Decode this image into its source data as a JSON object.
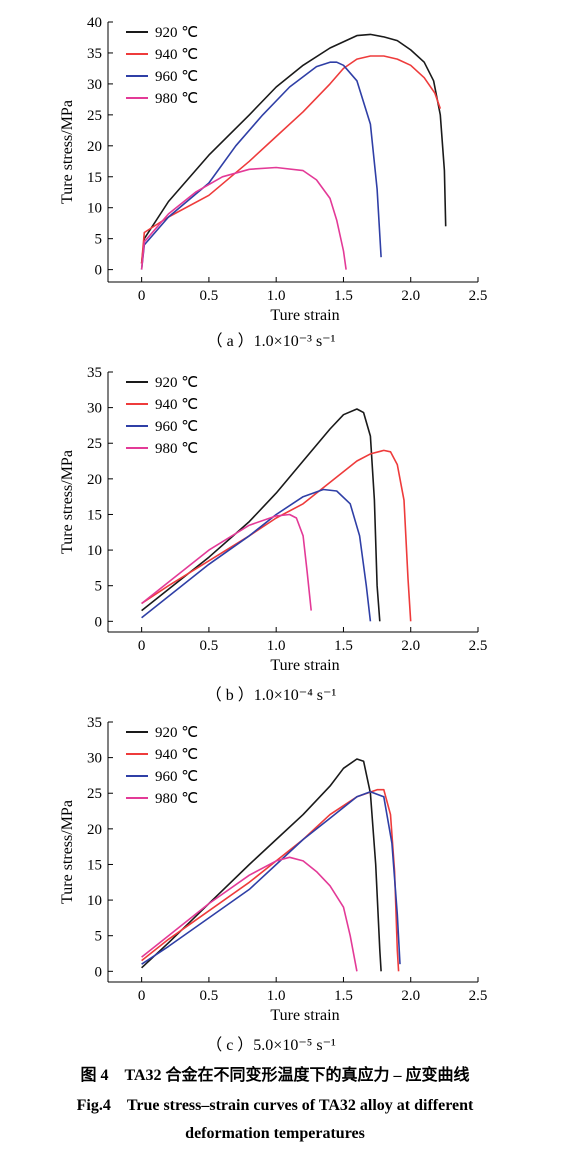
{
  "colors": {
    "920": "#1a1a1a",
    "940": "#ee3b3b",
    "960": "#2f3fa6",
    "980": "#e33a97"
  },
  "chart_data": [
    {
      "type": "line",
      "caption": "（ a ）1.0×10⁻³ s⁻¹",
      "xlabel": "Ture strain",
      "ylabel": "Ture stress/MPa",
      "xlim": [
        -0.25,
        2.5
      ],
      "ylim": [
        -2,
        40
      ],
      "xticks": [
        "0",
        "0.5",
        "1.0",
        "1.5",
        "2.0",
        "2.5"
      ],
      "yticks": [
        "0",
        "5",
        "10",
        "15",
        "20",
        "25",
        "30",
        "35",
        "40"
      ],
      "legend_position": "top-left",
      "series": [
        {
          "name": "920 ℃",
          "color": "#1a1a1a",
          "points": [
            [
              0,
              1
            ],
            [
              0.02,
              5
            ],
            [
              0.2,
              11
            ],
            [
              0.5,
              18.5
            ],
            [
              0.8,
              25
            ],
            [
              1.0,
              29.5
            ],
            [
              1.2,
              33
            ],
            [
              1.4,
              35.8
            ],
            [
              1.6,
              37.8
            ],
            [
              1.7,
              38
            ],
            [
              1.8,
              37.6
            ],
            [
              1.9,
              37
            ],
            [
              2.0,
              35.5
            ],
            [
              2.1,
              33.5
            ],
            [
              2.17,
              30.5
            ],
            [
              2.22,
              25
            ],
            [
              2.25,
              16
            ],
            [
              2.26,
              7
            ]
          ]
        },
        {
          "name": "940 ℃",
          "color": "#ee3b3b",
          "points": [
            [
              0,
              1
            ],
            [
              0.02,
              6
            ],
            [
              0.2,
              8.5
            ],
            [
              0.5,
              12
            ],
            [
              0.8,
              17.5
            ],
            [
              1.0,
              21.5
            ],
            [
              1.2,
              25.5
            ],
            [
              1.4,
              30
            ],
            [
              1.5,
              32.5
            ],
            [
              1.6,
              34
            ],
            [
              1.7,
              34.5
            ],
            [
              1.8,
              34.5
            ],
            [
              1.9,
              34
            ],
            [
              2.0,
              33
            ],
            [
              2.1,
              31
            ],
            [
              2.18,
              28.5
            ],
            [
              2.22,
              26
            ]
          ]
        },
        {
          "name": "960 ℃",
          "color": "#2f3fa6",
          "points": [
            [
              0,
              0
            ],
            [
              0.02,
              4
            ],
            [
              0.2,
              8.5
            ],
            [
              0.5,
              14
            ],
            [
              0.7,
              20
            ],
            [
              0.9,
              25
            ],
            [
              1.1,
              29.5
            ],
            [
              1.3,
              32.8
            ],
            [
              1.4,
              33.5
            ],
            [
              1.45,
              33.5
            ],
            [
              1.5,
              33
            ],
            [
              1.6,
              30.5
            ],
            [
              1.7,
              23.5
            ],
            [
              1.75,
              13
            ],
            [
              1.78,
              2
            ]
          ]
        },
        {
          "name": "980 ℃",
          "color": "#e33a97",
          "points": [
            [
              0,
              0
            ],
            [
              0.02,
              4.5
            ],
            [
              0.2,
              9
            ],
            [
              0.4,
              12.5
            ],
            [
              0.6,
              15
            ],
            [
              0.8,
              16.2
            ],
            [
              1.0,
              16.5
            ],
            [
              1.2,
              16
            ],
            [
              1.3,
              14.5
            ],
            [
              1.4,
              11.5
            ],
            [
              1.45,
              8
            ],
            [
              1.5,
              3
            ],
            [
              1.52,
              0
            ]
          ]
        }
      ]
    },
    {
      "type": "line",
      "caption": "（ b ）1.0×10⁻⁴ s⁻¹",
      "xlabel": "Ture strain",
      "ylabel": "Ture stress/MPa",
      "xlim": [
        -0.25,
        2.5
      ],
      "ylim": [
        -1.5,
        35
      ],
      "xticks": [
        "0",
        "0.5",
        "1.0",
        "1.5",
        "2.0",
        "2.5"
      ],
      "yticks": [
        "0",
        "5",
        "10",
        "15",
        "20",
        "25",
        "30",
        "35"
      ],
      "legend_position": "top-left",
      "series": [
        {
          "name": "920 ℃",
          "color": "#1a1a1a",
          "points": [
            [
              0,
              1.5
            ],
            [
              0.2,
              4.5
            ],
            [
              0.5,
              9
            ],
            [
              0.8,
              14
            ],
            [
              1.0,
              18
            ],
            [
              1.2,
              22.5
            ],
            [
              1.4,
              27
            ],
            [
              1.5,
              29
            ],
            [
              1.6,
              29.8
            ],
            [
              1.65,
              29.3
            ],
            [
              1.7,
              26
            ],
            [
              1.73,
              17
            ],
            [
              1.75,
              5
            ],
            [
              1.77,
              0
            ]
          ]
        },
        {
          "name": "940 ℃",
          "color": "#ee3b3b",
          "points": [
            [
              0,
              2.5
            ],
            [
              0.2,
              5
            ],
            [
              0.5,
              8.5
            ],
            [
              0.8,
              12
            ],
            [
              1.0,
              14.5
            ],
            [
              1.2,
              16.5
            ],
            [
              1.4,
              19.5
            ],
            [
              1.6,
              22.5
            ],
            [
              1.7,
              23.5
            ],
            [
              1.8,
              24
            ],
            [
              1.85,
              23.8
            ],
            [
              1.9,
              22
            ],
            [
              1.95,
              17
            ],
            [
              1.98,
              6
            ],
            [
              2.0,
              0
            ]
          ]
        },
        {
          "name": "960 ℃",
          "color": "#2f3fa6",
          "points": [
            [
              0,
              0.5
            ],
            [
              0.2,
              3.5
            ],
            [
              0.5,
              8
            ],
            [
              0.8,
              12
            ],
            [
              1.0,
              15
            ],
            [
              1.2,
              17.5
            ],
            [
              1.35,
              18.5
            ],
            [
              1.45,
              18.3
            ],
            [
              1.55,
              16.5
            ],
            [
              1.62,
              12
            ],
            [
              1.67,
              5
            ],
            [
              1.7,
              0
            ]
          ]
        },
        {
          "name": "980 ℃",
          "color": "#e33a97",
          "points": [
            [
              0,
              2.5
            ],
            [
              0.2,
              5.5
            ],
            [
              0.5,
              10
            ],
            [
              0.8,
              13.5
            ],
            [
              1.0,
              14.8
            ],
            [
              1.1,
              15
            ],
            [
              1.15,
              14.5
            ],
            [
              1.2,
              12
            ],
            [
              1.23,
              7
            ],
            [
              1.26,
              1.5
            ]
          ]
        }
      ]
    },
    {
      "type": "line",
      "caption": "（ c ）5.0×10⁻⁵ s⁻¹",
      "xlabel": "Ture strain",
      "ylabel": "Ture stress/MPa",
      "xlim": [
        -0.25,
        2.5
      ],
      "ylim": [
        -1.5,
        35
      ],
      "xticks": [
        "0",
        "0.5",
        "1.0",
        "1.5",
        "2.0",
        "2.5"
      ],
      "yticks": [
        "0",
        "5",
        "10",
        "15",
        "20",
        "25",
        "30",
        "35"
      ],
      "legend_position": "top-left",
      "series": [
        {
          "name": "920 ℃",
          "color": "#1a1a1a",
          "points": [
            [
              0,
              0.5
            ],
            [
              0.2,
              4
            ],
            [
              0.5,
              9.5
            ],
            [
              0.8,
              15
            ],
            [
              1.0,
              18.5
            ],
            [
              1.2,
              22
            ],
            [
              1.4,
              26
            ],
            [
              1.5,
              28.5
            ],
            [
              1.6,
              29.8
            ],
            [
              1.65,
              29.5
            ],
            [
              1.7,
              25
            ],
            [
              1.74,
              15
            ],
            [
              1.77,
              3
            ],
            [
              1.78,
              0
            ]
          ]
        },
        {
          "name": "940 ℃",
          "color": "#ee3b3b",
          "points": [
            [
              0,
              1.5
            ],
            [
              0.2,
              4.5
            ],
            [
              0.5,
              8.5
            ],
            [
              0.8,
              12.5
            ],
            [
              1.0,
              15.5
            ],
            [
              1.2,
              18.5
            ],
            [
              1.4,
              22
            ],
            [
              1.6,
              24.5
            ],
            [
              1.75,
              25.5
            ],
            [
              1.8,
              25.5
            ],
            [
              1.85,
              22
            ],
            [
              1.88,
              14
            ],
            [
              1.9,
              3
            ],
            [
              1.91,
              0
            ]
          ]
        },
        {
          "name": "960 ℃",
          "color": "#2f3fa6",
          "points": [
            [
              0,
              1
            ],
            [
              0.2,
              3.5
            ],
            [
              0.5,
              7.5
            ],
            [
              0.8,
              11.5
            ],
            [
              1.0,
              15
            ],
            [
              1.2,
              18.5
            ],
            [
              1.4,
              21.5
            ],
            [
              1.6,
              24.5
            ],
            [
              1.7,
              25.2
            ],
            [
              1.8,
              24.5
            ],
            [
              1.86,
              18
            ],
            [
              1.9,
              8
            ],
            [
              1.92,
              1
            ]
          ]
        },
        {
          "name": "980 ℃",
          "color": "#e33a97",
          "points": [
            [
              0,
              2
            ],
            [
              0.2,
              5
            ],
            [
              0.5,
              9.5
            ],
            [
              0.8,
              13.5
            ],
            [
              1.0,
              15.5
            ],
            [
              1.1,
              16
            ],
            [
              1.2,
              15.5
            ],
            [
              1.3,
              14
            ],
            [
              1.4,
              12
            ],
            [
              1.5,
              9
            ],
            [
              1.55,
              5
            ],
            [
              1.6,
              0
            ]
          ]
        }
      ]
    }
  ],
  "figure": {
    "title_cn": "图 4　TA32 合金在不同变形温度下的真应力 – 应变曲线",
    "title_en_line1": "Fig.4　True stress–strain curves of TA32 alloy at different",
    "title_en_line2": "deformation temperatures"
  }
}
